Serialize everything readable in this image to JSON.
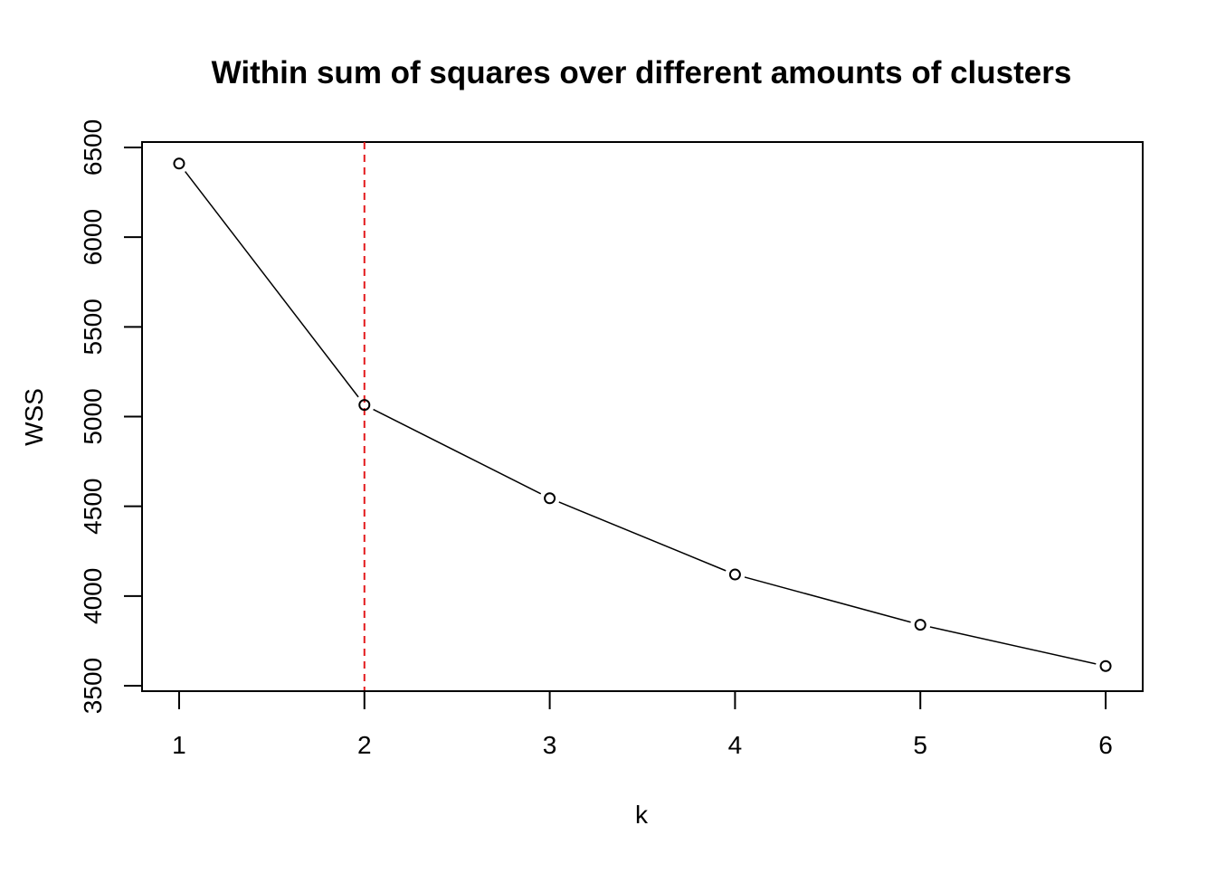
{
  "chart_data": {
    "type": "line",
    "title": "Within sum of squares over different amounts of clusters",
    "xlabel": "k",
    "ylabel": "WSS",
    "x": [
      1,
      2,
      3,
      4,
      5,
      6
    ],
    "series": [
      {
        "values": [
          6410,
          5065,
          4545,
          4120,
          3840,
          3610
        ],
        "line_color": "#000000",
        "marker": "open-circle"
      }
    ],
    "xlim": [
      0.8,
      6.2
    ],
    "ylim": [
      3500,
      6500
    ],
    "xticks": [
      1,
      2,
      3,
      4,
      5,
      6
    ],
    "yticks": [
      3500,
      4000,
      4500,
      5000,
      5500,
      6000,
      6500
    ],
    "reference_line": {
      "orientation": "vertical",
      "x": 2,
      "color": "#e31a1c",
      "style": "dashed"
    },
    "grid": false,
    "legend": "none"
  }
}
